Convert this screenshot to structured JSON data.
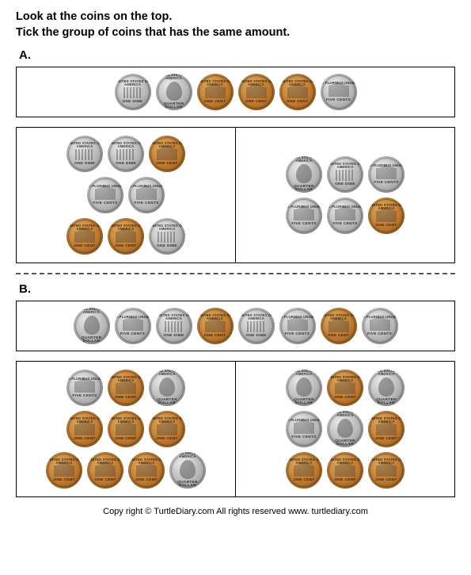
{
  "instructions": {
    "line1": "Look at the coins on the top.",
    "line2": "Tick the group of coins that has the same amount."
  },
  "coin_types": {
    "dime": {
      "color": "silver",
      "glyph": "cols",
      "top": "UNITED STATES OF AMERICA",
      "bottom": "ONE DIME"
    },
    "quarter": {
      "color": "silver",
      "glyph": "portrait",
      "top": "UNITED STATES OF AMERICA",
      "bottom": "QUARTER DOLLAR"
    },
    "nickel": {
      "color": "silver",
      "glyph": "building",
      "top": "E PLURIBUS UNUM",
      "bottom": "FIVE CENTS"
    },
    "penny": {
      "color": "copper",
      "glyph": "building",
      "top": "UNITED STATES OF AMERICA",
      "bottom": "ONE CENT"
    }
  },
  "sections": {
    "A": {
      "label": "A.",
      "top": [
        "dime",
        "quarter",
        "penny",
        "penny",
        "penny",
        "nickel"
      ],
      "left": [
        [
          "dime",
          "dime",
          "penny"
        ],
        [
          "nickel",
          "nickel"
        ],
        [
          "penny",
          "penny",
          "dime"
        ]
      ],
      "right": [
        [
          "quarter",
          "dime",
          "nickel"
        ],
        [
          "nickel",
          "nickel",
          "penny"
        ]
      ]
    },
    "B": {
      "label": "B.",
      "top": [
        "quarter",
        "nickel",
        "dime",
        "penny",
        "dime",
        "nickel",
        "penny",
        "nickel"
      ],
      "left": [
        [
          "nickel",
          "penny",
          "quarter"
        ],
        [
          "penny",
          "penny",
          "penny"
        ],
        [
          "penny",
          "penny",
          "penny",
          "quarter"
        ]
      ],
      "right": [
        [
          "quarter",
          "penny",
          "quarter"
        ],
        [
          "nickel",
          "quarter",
          "penny"
        ],
        [
          "penny",
          "penny",
          "penny"
        ]
      ]
    }
  },
  "footer": "Copy right © TurtleDiary.com     All rights reserved    www. turtlediary.com"
}
